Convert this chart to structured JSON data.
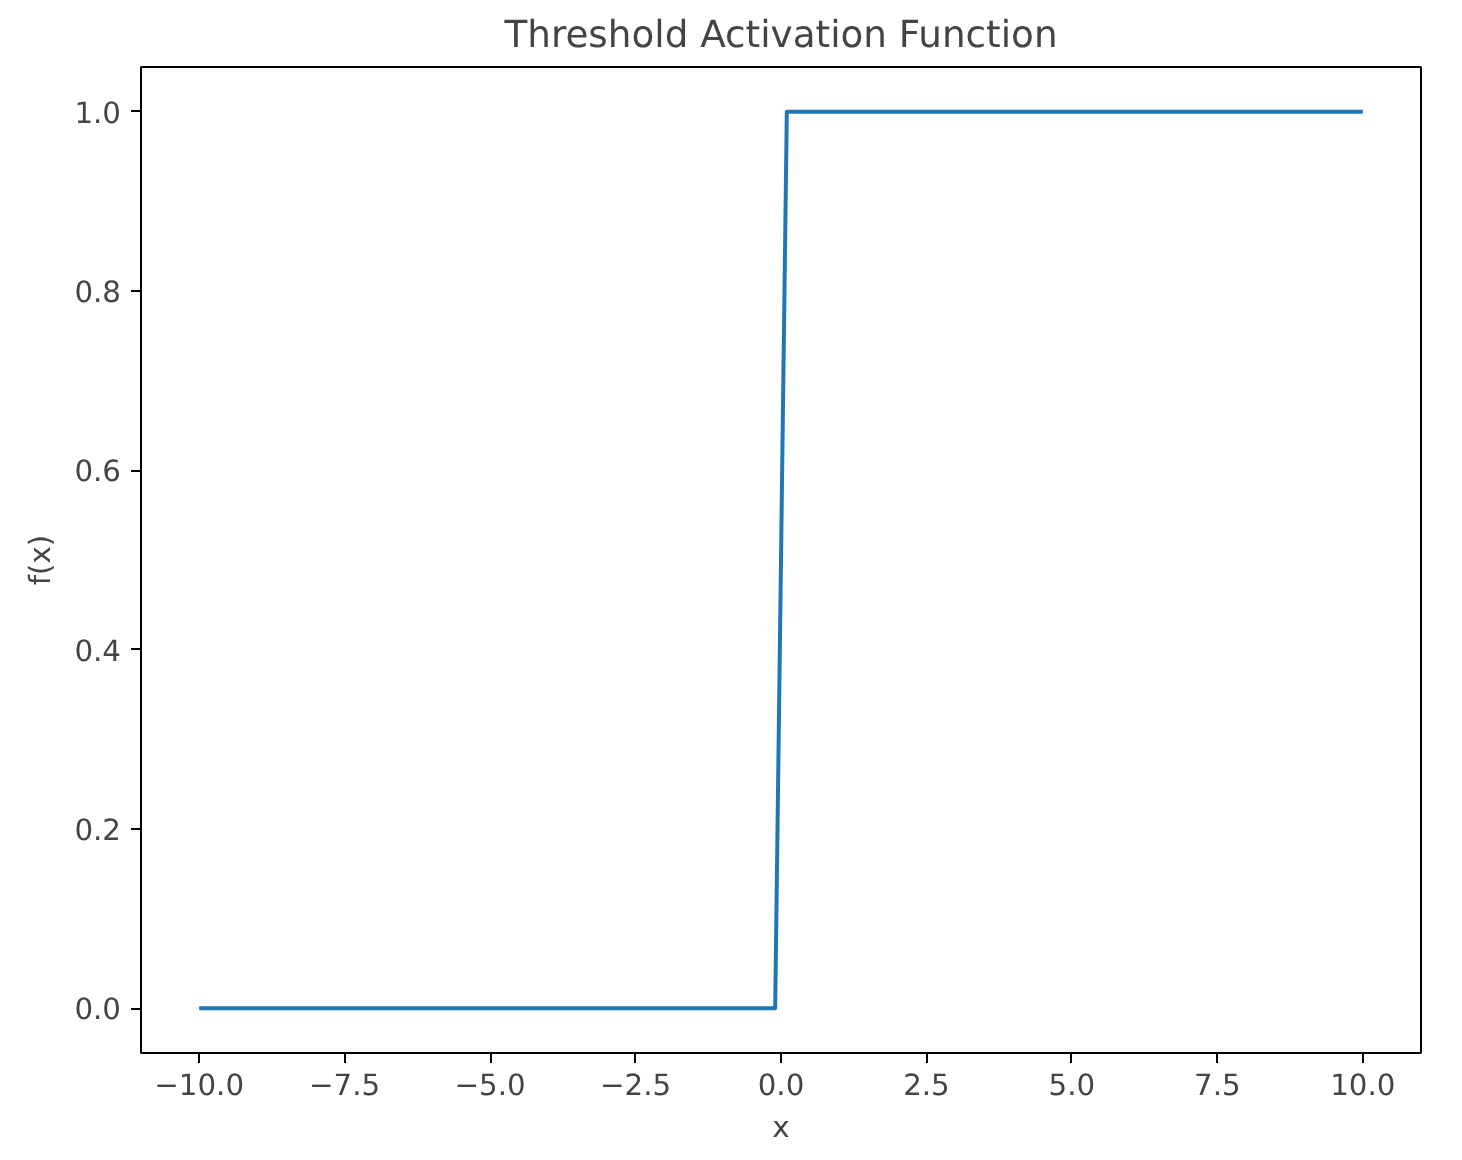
{
  "chart_data": {
    "type": "line",
    "title": "Threshold Activation Function",
    "xlabel": "x",
    "ylabel": "f(x)",
    "x": [
      -10,
      -0.1,
      0.1,
      10
    ],
    "series": [
      {
        "color": "#1f77b4",
        "values": [
          0,
          0,
          1,
          1
        ]
      }
    ],
    "xlim": [
      -11,
      11
    ],
    "ylim": [
      -0.05,
      1.05
    ],
    "xticks": [
      {
        "value": -10,
        "label": "−10.0"
      },
      {
        "value": -7.5,
        "label": "−7.5"
      },
      {
        "value": -5,
        "label": "−5.0"
      },
      {
        "value": -2.5,
        "label": "−2.5"
      },
      {
        "value": 0,
        "label": "0.0"
      },
      {
        "value": 2.5,
        "label": "2.5"
      },
      {
        "value": 5,
        "label": "5.0"
      },
      {
        "value": 7.5,
        "label": "7.5"
      },
      {
        "value": 10,
        "label": "10.0"
      }
    ],
    "yticks": [
      {
        "value": 0,
        "label": "0.0"
      },
      {
        "value": 0.2,
        "label": "0.2"
      },
      {
        "value": 0.4,
        "label": "0.4"
      },
      {
        "value": 0.6,
        "label": "0.6"
      },
      {
        "value": 0.8,
        "label": "0.8"
      },
      {
        "value": 1,
        "label": "1.0"
      }
    ],
    "grid": false
  }
}
